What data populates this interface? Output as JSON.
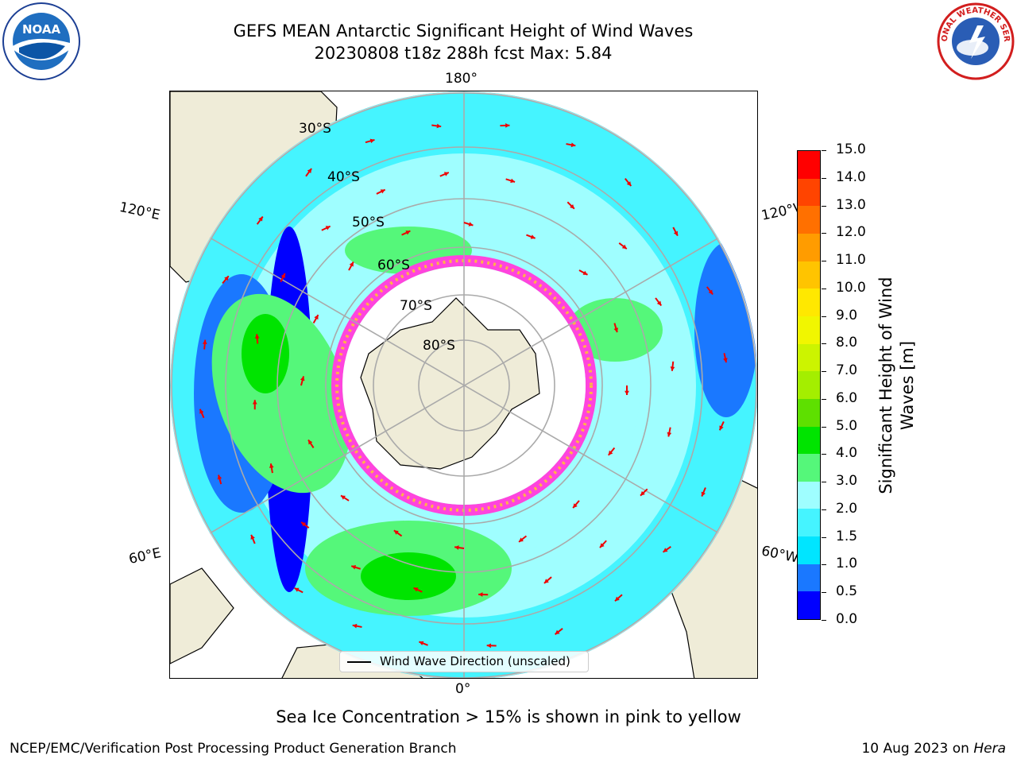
{
  "title": {
    "line1": "GEFS MEAN Antarctic Significant Height of Wind Waves",
    "line2": "20230808 t18z 288h fcst   Max: 5.84"
  },
  "longitude_labels": {
    "lon_180": "180°",
    "lon_0": "0°",
    "lon_120e": "120°E",
    "lon_60e": "60°E",
    "lon_120w": "120°W",
    "lon_60w": "60°W"
  },
  "latitude_labels": [
    "30°S",
    "40°S",
    "50°S",
    "60°S",
    "70°S",
    "80°S"
  ],
  "legend": {
    "label": "Wind Wave Direction (unscaled)"
  },
  "colorbar": {
    "title": "Significant Height of Wind Waves [m]",
    "min": 0.0,
    "max": 15.0,
    "tick_labels": [
      "0.0",
      "0.5",
      "1.0",
      "1.5",
      "2.0",
      "3.0",
      "4.0",
      "5.0",
      "6.0",
      "7.0",
      "8.0",
      "9.0",
      "10.0",
      "11.0",
      "12.0",
      "13.0",
      "14.0",
      "15.0"
    ],
    "colors": [
      "#0000ff",
      "#1a78ff",
      "#00e5ff",
      "#45f4ff",
      "#9ffeff",
      "#55f77a",
      "#00e400",
      "#5ee000",
      "#a4ee00",
      "#ccf400",
      "#f1f600",
      "#ffe800",
      "#ffc400",
      "#ff9c00",
      "#ff7000",
      "#ff4400",
      "#ff0000"
    ]
  },
  "footnote": "Sea Ice Concentration > 15% is shown in pink to yellow",
  "credits": {
    "left": "NCEP/EMC/Verification Post Processing Product Generation Branch",
    "right_date": "10 Aug 2023 on",
    "right_host": "Hera"
  },
  "logos": {
    "left": {
      "icon": "noaa-logo",
      "text": "NOAA"
    },
    "right": {
      "icon": "nws-logo",
      "text": "NATIONAL WEATHER SERVICE"
    }
  }
}
